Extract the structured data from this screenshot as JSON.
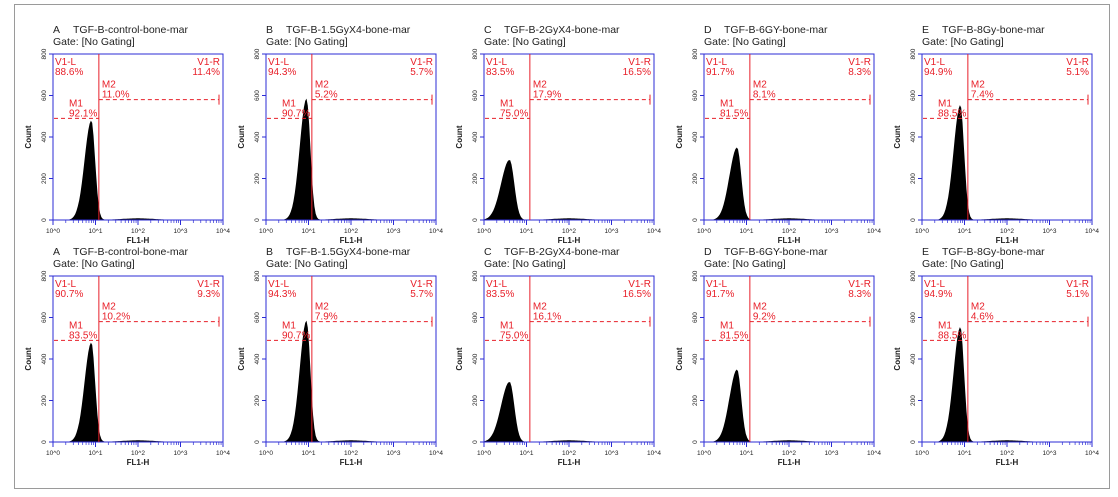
{
  "chart_data": [
    {
      "type": "histogram",
      "panel_letter": "A",
      "title": "TGF-B-control-bone-mar",
      "gate": "Gate: [No Gating]",
      "xlabel": "FL1-H",
      "ylabel": "Count",
      "x_scale": "log",
      "xlim": [
        1,
        10000
      ],
      "ylim": [
        0,
        800
      ],
      "x_ticks": [
        "10^0",
        "10^1",
        "10^2",
        "10^3",
        "10^4"
      ],
      "y_ticks": [
        0,
        200,
        400,
        600,
        800
      ],
      "v1_line_x": 12,
      "m2_y": 580,
      "m1_y": 490,
      "peak_x": 8,
      "peak_height": 480,
      "peak_width": 0.16,
      "regions": {
        "V1-L": "88.6%",
        "V1-R": "11.4%",
        "M1": "92.1%",
        "M2": "11.0%"
      }
    },
    {
      "type": "histogram",
      "panel_letter": "B",
      "title": "TGF-B-1.5GyX4-bone-mar",
      "gate": "Gate: [No Gating]",
      "xlabel": "FL1-H",
      "ylabel": "Count",
      "x_scale": "log",
      "xlim": [
        1,
        10000
      ],
      "ylim": [
        0,
        800
      ],
      "x_ticks": [
        "10^0",
        "10^1",
        "10^2",
        "10^3",
        "10^4"
      ],
      "y_ticks": [
        0,
        200,
        400,
        600,
        800
      ],
      "v1_line_x": 12,
      "m2_y": 580,
      "m1_y": 490,
      "peak_x": 9,
      "peak_height": 585,
      "peak_width": 0.16,
      "regions": {
        "V1-L": "94.3%",
        "V1-R": "5.7%",
        "M1": "90.7%",
        "M2": "5.2%"
      }
    },
    {
      "type": "histogram",
      "panel_letter": "C",
      "title": "TGF-B-2GyX4-bone-mar",
      "gate": "Gate: [No Gating]",
      "xlabel": "FL1-H",
      "ylabel": "Count",
      "x_scale": "log",
      "xlim": [
        1,
        10000
      ],
      "ylim": [
        0,
        800
      ],
      "x_ticks": [
        "10^0",
        "10^1",
        "10^2",
        "10^3",
        "10^4"
      ],
      "y_ticks": [
        0,
        200,
        400,
        600,
        800
      ],
      "v1_line_x": 12,
      "m2_y": 580,
      "m1_y": 490,
      "peak_x": 4,
      "peak_height": 290,
      "peak_width": 0.2,
      "regions": {
        "V1-L": "83.5%",
        "V1-R": "16.5%",
        "M1": "75.0%",
        "M2": "17.9%"
      }
    },
    {
      "type": "histogram",
      "panel_letter": "D",
      "title": "TGF-B-6GY-bone-mar",
      "gate": "Gate: [No Gating]",
      "xlabel": "FL1-H",
      "ylabel": "Count",
      "x_scale": "log",
      "xlim": [
        1,
        10000
      ],
      "ylim": [
        0,
        800
      ],
      "x_ticks": [
        "10^0",
        "10^1",
        "10^2",
        "10^3",
        "10^4"
      ],
      "y_ticks": [
        0,
        200,
        400,
        600,
        800
      ],
      "v1_line_x": 12,
      "m2_y": 580,
      "m1_y": 490,
      "peak_x": 6,
      "peak_height": 350,
      "peak_width": 0.18,
      "regions": {
        "V1-L": "91.7%",
        "V1-R": "8.3%",
        "M1": "81.5%",
        "M2": "8.1%"
      }
    },
    {
      "type": "histogram",
      "panel_letter": "E",
      "title": "TGF-B-8Gy-bone-mar",
      "gate": "Gate: [No Gating]",
      "xlabel": "FL1-H",
      "ylabel": "Count",
      "x_scale": "log",
      "xlim": [
        1,
        10000
      ],
      "ylim": [
        0,
        800
      ],
      "x_ticks": [
        "10^0",
        "10^1",
        "10^2",
        "10^3",
        "10^4"
      ],
      "y_ticks": [
        0,
        200,
        400,
        600,
        800
      ],
      "v1_line_x": 12,
      "m2_y": 580,
      "m1_y": 490,
      "peak_x": 8,
      "peak_height": 555,
      "peak_width": 0.16,
      "regions": {
        "V1-L": "94.9%",
        "V1-R": "5.1%",
        "M1": "88.5%",
        "M2": "7.4%"
      }
    },
    {
      "type": "histogram",
      "panel_letter": "A",
      "title": "TGF-B-control-bone-mar",
      "gate": "Gate: [No Gating]",
      "xlabel": "FL1-H",
      "ylabel": "Count",
      "x_scale": "log",
      "xlim": [
        1,
        10000
      ],
      "ylim": [
        0,
        800
      ],
      "x_ticks": [
        "10^0",
        "10^1",
        "10^2",
        "10^3",
        "10^4"
      ],
      "y_ticks": [
        0,
        200,
        400,
        600,
        800
      ],
      "v1_line_x": 12,
      "m2_y": 580,
      "m1_y": 490,
      "peak_x": 8,
      "peak_height": 480,
      "peak_width": 0.16,
      "regions": {
        "V1-L": "90.7%",
        "V1-R": "9.3%",
        "M1": "83.5%",
        "M2": "10.2%"
      }
    },
    {
      "type": "histogram",
      "panel_letter": "B",
      "title": "TGF-B-1.5GyX4-bone-mar",
      "gate": "Gate: [No Gating]",
      "xlabel": "FL1-H",
      "ylabel": "Count",
      "x_scale": "log",
      "xlim": [
        1,
        10000
      ],
      "ylim": [
        0,
        800
      ],
      "x_ticks": [
        "10^0",
        "10^1",
        "10^2",
        "10^3",
        "10^4"
      ],
      "y_ticks": [
        0,
        200,
        400,
        600,
        800
      ],
      "v1_line_x": 12,
      "m2_y": 580,
      "m1_y": 490,
      "peak_x": 9,
      "peak_height": 585,
      "peak_width": 0.16,
      "regions": {
        "V1-L": "94.3%",
        "V1-R": "5.7%",
        "M1": "90.7%",
        "M2": "7.9%"
      }
    },
    {
      "type": "histogram",
      "panel_letter": "C",
      "title": "TGF-B-2GyX4-bone-mar",
      "gate": "Gate: [No Gating]",
      "xlabel": "FL1-H",
      "ylabel": "Count",
      "x_scale": "log",
      "xlim": [
        1,
        10000
      ],
      "ylim": [
        0,
        800
      ],
      "x_ticks": [
        "10^0",
        "10^1",
        "10^2",
        "10^3",
        "10^4"
      ],
      "y_ticks": [
        0,
        200,
        400,
        600,
        800
      ],
      "v1_line_x": 12,
      "m2_y": 580,
      "m1_y": 490,
      "peak_x": 4,
      "peak_height": 290,
      "peak_width": 0.2,
      "regions": {
        "V1-L": "83.5%",
        "V1-R": "16.5%",
        "M1": "75.0%",
        "M2": "16.1%"
      }
    },
    {
      "type": "histogram",
      "panel_letter": "D",
      "title": "TGF-B-6GY-bone-mar",
      "gate": "Gate: [No Gating]",
      "xlabel": "FL1-H",
      "ylabel": "Count",
      "x_scale": "log",
      "xlim": [
        1,
        10000
      ],
      "ylim": [
        0,
        800
      ],
      "x_ticks": [
        "10^0",
        "10^1",
        "10^2",
        "10^3",
        "10^4"
      ],
      "y_ticks": [
        0,
        200,
        400,
        600,
        800
      ],
      "v1_line_x": 12,
      "m2_y": 580,
      "m1_y": 490,
      "peak_x": 6,
      "peak_height": 350,
      "peak_width": 0.18,
      "regions": {
        "V1-L": "91.7%",
        "V1-R": "8.3%",
        "M1": "81.5%",
        "M2": "9.2%"
      }
    },
    {
      "type": "histogram",
      "panel_letter": "E",
      "title": "TGF-B-8Gy-bone-mar",
      "gate": "Gate: [No Gating]",
      "xlabel": "FL1-H",
      "ylabel": "Count",
      "x_scale": "log",
      "xlim": [
        1,
        10000
      ],
      "ylim": [
        0,
        800
      ],
      "x_ticks": [
        "10^0",
        "10^1",
        "10^2",
        "10^3",
        "10^4"
      ],
      "y_ticks": [
        0,
        200,
        400,
        600,
        800
      ],
      "v1_line_x": 12,
      "m2_y": 580,
      "m1_y": 490,
      "peak_x": 8,
      "peak_height": 555,
      "peak_width": 0.16,
      "regions": {
        "V1-L": "94.9%",
        "V1-R": "5.1%",
        "M1": "88.5%",
        "M2": "4.6%"
      }
    }
  ],
  "colors": {
    "axis_frame": "#2b2bd6",
    "marker": "#e8202a",
    "histogram": "#000000",
    "label_text": "#222222"
  }
}
